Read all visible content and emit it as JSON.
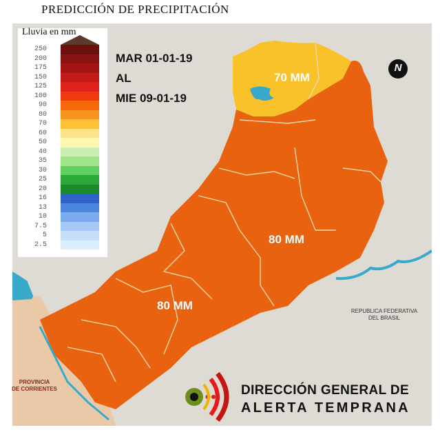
{
  "title": "PREDICCIÓN  DE PRECIPITACIÓN",
  "legend": {
    "title": "Lluvia en mm",
    "entries": [
      {
        "label": "250",
        "color": "#6b0f0f"
      },
      {
        "label": "200",
        "color": "#8a1414"
      },
      {
        "label": "175",
        "color": "#a51515"
      },
      {
        "label": "150",
        "color": "#c41a1a"
      },
      {
        "label": "125",
        "color": "#e0221a"
      },
      {
        "label": "100",
        "color": "#f23a10"
      },
      {
        "label": "90",
        "color": "#f5680c"
      },
      {
        "label": "80",
        "color": "#f7951c"
      },
      {
        "label": "70",
        "color": "#fbc13a"
      },
      {
        "label": "60",
        "color": "#fde38a"
      },
      {
        "label": "50",
        "color": "#fdf6b0"
      },
      {
        "label": "40",
        "color": "#c9f0b0"
      },
      {
        "label": "35",
        "color": "#9fe58a"
      },
      {
        "label": "30",
        "color": "#5fcf5f"
      },
      {
        "label": "25",
        "color": "#2ca83a"
      },
      {
        "label": "20",
        "color": "#1d8a2e"
      },
      {
        "label": "16",
        "color": "#2f63c7"
      },
      {
        "label": "13",
        "color": "#4a85de"
      },
      {
        "label": "10",
        "color": "#7aaaf0"
      },
      {
        "label": "7.5",
        "color": "#a5c8f6"
      },
      {
        "label": "5",
        "color": "#c6dff9"
      },
      {
        "label": "2.5",
        "color": "#dcedfc"
      }
    ]
  },
  "date_range": {
    "from": "MAR 01-01-19",
    "connector": "AL",
    "to": "MIE 09-01-19"
  },
  "map": {
    "labels": {
      "north": "70 MM",
      "east": "80 MM",
      "south": "80 MM"
    },
    "neighbors": {
      "brazil": [
        "REPUBLICA FEDERATIVA",
        "DEL BRASIL"
      ],
      "corrientes": [
        "PROVINCIA",
        "DE CORRIENTES"
      ]
    },
    "colors": {
      "orange": "#e8620f",
      "yellow": "#f9c22a",
      "water": "#38a9c9",
      "land": "#dedbd4",
      "corrientes": "#e9c9a8"
    }
  },
  "north_arrow": "N",
  "logo": {
    "line1": "DIRECCIÓN GENERAL DE",
    "line2": "ALERTA TEMPRANA"
  }
}
